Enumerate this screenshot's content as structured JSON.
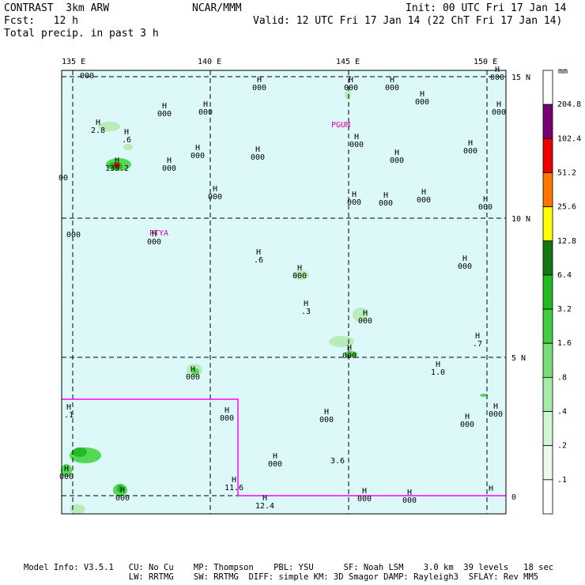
{
  "header": {
    "left_line1": "CONTRAST  3km ARW",
    "center_line1": "NCAR/MMM",
    "right_line1": "Init: 00 UTC Fri 17 Jan 14",
    "left_line2": "Fcst:   12 h",
    "right_line2": "Valid: 12 UTC Fri 17 Jan 14 (22 ChT Fri 17 Jan 14)",
    "left_line3": "Total precip. in past 3 h"
  },
  "footer": {
    "line1": "Model Info: V3.5.1   CU: No Cu    MP: Thompson    PBL: YSU      SF: Noah LSM    3.0 km  39 levels   18 sec",
    "line2": "                     LW: RRTMG    SW: RRTMG  DIFF: simple KM: 3D Smagor DAMP: Rayleigh3  SFLAY: Rev MM5"
  },
  "map": {
    "lon_labels": [
      "135 E",
      "140 E",
      "145 E",
      "150 E"
    ],
    "lat_labels": [
      "15 N",
      "10 N",
      "5 N",
      "0"
    ],
    "station_labels": [
      "PGUM",
      "PTYA"
    ],
    "colors": {
      "ocean": "#ddf8f8",
      "grid": "#000000",
      "region_box": "#ff00ff",
      "station": "#dd00aa",
      "rain_light": "#b8ecb8",
      "rain_mid": "#55d855",
      "rain_heavy": "#22bb22",
      "rain_max": "#cc0000"
    },
    "pressure_marks": [
      {
        "h": "",
        "v": "000"
      },
      {
        "h": "H",
        "v": "000"
      },
      {
        "h": "H",
        "v": "000"
      },
      {
        "h": "H",
        "v": "000"
      },
      {
        "h": "H",
        "v": "000"
      },
      {
        "h": "H",
        "v": "000"
      },
      {
        "h": "H",
        "v": "000"
      },
      {
        "h": "H",
        "v": "000"
      },
      {
        "h": "H",
        "v": "000"
      },
      {
        "h": "H",
        "v": "2.8"
      },
      {
        "h": "H",
        "v": ".6"
      },
      {
        "h": "H",
        "v": "000"
      },
      {
        "h": "H",
        "v": "000"
      },
      {
        "h": "H",
        "v": "000"
      },
      {
        "h": "H",
        "v": "139.2"
      },
      {
        "h": "H",
        "v": "000"
      },
      {
        "h": "",
        "v": "00"
      },
      {
        "h": "H",
        "v": "000"
      },
      {
        "h": "H",
        "v": "000"
      },
      {
        "h": "H",
        "v": "000"
      },
      {
        "h": "H",
        "v": "000"
      },
      {
        "h": "H",
        "v": "000"
      },
      {
        "h": "H",
        "v": "000"
      },
      {
        "h": "H",
        "v": "000"
      },
      {
        "h": "",
        "v": "000"
      },
      {
        "h": "H",
        "v": "000"
      },
      {
        "h": "H",
        "v": ".6"
      },
      {
        "h": "H",
        "v": "000"
      },
      {
        "h": "H",
        "v": "000"
      },
      {
        "h": "H",
        "v": ".3"
      },
      {
        "h": "H",
        "v": "000"
      },
      {
        "h": "H",
        "v": ".7"
      },
      {
        "h": "H",
        "v": "000"
      },
      {
        "h": "H",
        "v": "1.0"
      },
      {
        "h": "H",
        "v": "000"
      },
      {
        "h": "H",
        "v": ".1"
      },
      {
        "h": "H",
        "v": "000"
      },
      {
        "h": "H",
        "v": "000"
      },
      {
        "h": "H",
        "v": "000"
      },
      {
        "h": "H",
        "v": "000"
      },
      {
        "h": "H",
        "v": "000"
      },
      {
        "h": "",
        "v": "3.6"
      },
      {
        "h": "H",
        "v": "000"
      },
      {
        "h": "H",
        "v": "11.6"
      },
      {
        "h": "H",
        "v": "000"
      },
      {
        "h": "H",
        "v": "000"
      },
      {
        "h": "H",
        "v": "000"
      },
      {
        "h": "H",
        "v": ""
      },
      {
        "h": "H",
        "v": "12.4"
      }
    ]
  },
  "colorbar": {
    "unit": "mm",
    "labels": [
      "204.8",
      "102.4",
      "51.2",
      "25.6",
      "12.8",
      "6.4",
      "3.2",
      "1.6",
      ".8",
      ".4",
      ".2",
      ".1"
    ],
    "colors": [
      "#ffffff",
      "#770077",
      "#ee0000",
      "#ff7700",
      "#ffff00",
      "#117711",
      "#22bb22",
      "#44cc44",
      "#77dd77",
      "#a8eaa8",
      "#d2f6d2",
      "#ecfaec",
      "#ffffff"
    ]
  }
}
